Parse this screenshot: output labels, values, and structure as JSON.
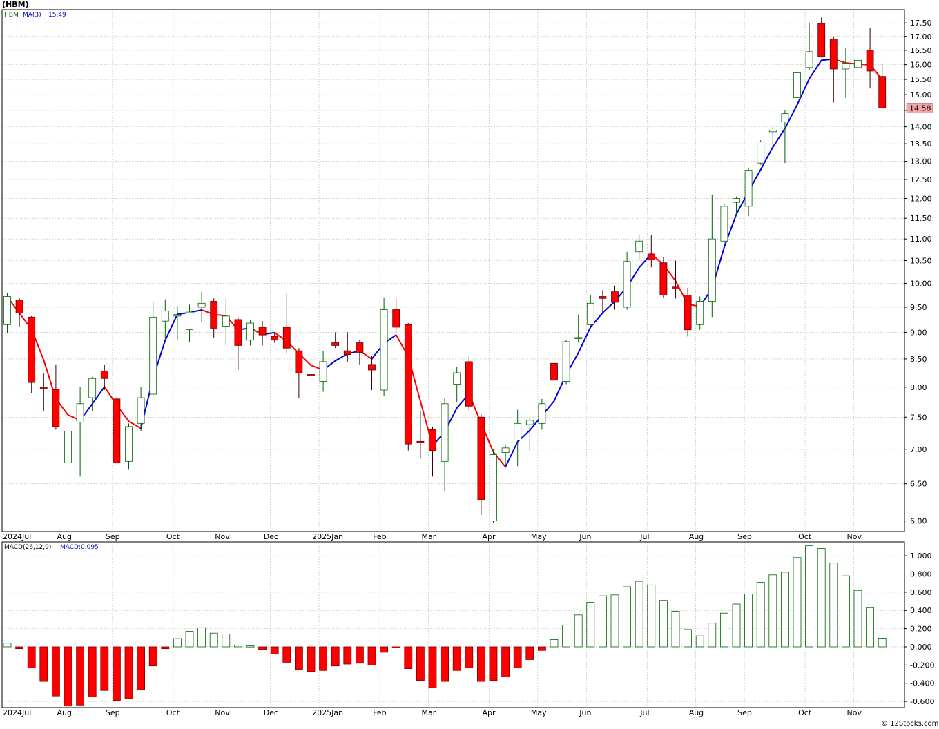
{
  "header": {
    "title": "(HBM)",
    "ticker": "HBM",
    "ma_label": "MA(3)",
    "ma_value": "15.49",
    "last_price": "14.58"
  },
  "macd_legend": {
    "label": "MACD(26,12,9)",
    "value_label": "MACD:0.095"
  },
  "copyright": "© 12Stocks.com",
  "colors": {
    "up": "#006400",
    "down": "#ff0000",
    "ma_up": "#0000dd",
    "ma_down": "#ff0000",
    "grid": "#b8b8b8",
    "price_tag": "#f4a6a6"
  },
  "chart_data": [
    {
      "type": "candlestick",
      "title": "(HBM)",
      "y_scale": "log",
      "ylim": [
        5.9,
        17.9
      ],
      "y_ticks": [
        6.0,
        6.5,
        7.0,
        7.5,
        8.0,
        8.5,
        9.0,
        9.5,
        10.0,
        10.5,
        11.0,
        11.5,
        12.0,
        12.5,
        13.0,
        13.5,
        14.0,
        14.5,
        15.0,
        15.5,
        16.0,
        16.5,
        17.0,
        17.5
      ],
      "x_tick_labels": [
        {
          "label": "2024Jul",
          "index": 0
        },
        {
          "label": "Aug",
          "index": 5
        },
        {
          "label": "Sep",
          "index": 9
        },
        {
          "label": "Oct",
          "index": 14
        },
        {
          "label": "Nov",
          "index": 18
        },
        {
          "label": "Dec",
          "index": 22
        },
        {
          "label": "2025Jan",
          "index": 26
        },
        {
          "label": "Feb",
          "index": 31
        },
        {
          "label": "Mar",
          "index": 35
        },
        {
          "label": "Apr",
          "index": 40
        },
        {
          "label": "May",
          "index": 44
        },
        {
          "label": "Jun",
          "index": 48
        },
        {
          "label": "Jul",
          "index": 53
        },
        {
          "label": "Aug",
          "index": 57
        },
        {
          "label": "Sep",
          "index": 61
        },
        {
          "label": "Oct",
          "index": 66
        },
        {
          "label": "Nov",
          "index": 70
        }
      ],
      "candles": [
        {
          "o": 9.15,
          "h": 9.8,
          "l": 8.98,
          "c": 9.72
        },
        {
          "o": 9.65,
          "h": 9.7,
          "l": 9.1,
          "c": 9.38
        },
        {
          "o": 9.3,
          "h": 9.32,
          "l": 7.9,
          "c": 8.08
        },
        {
          "o": 8.0,
          "h": 8.25,
          "l": 7.6,
          "c": 7.98
        },
        {
          "o": 7.96,
          "h": 8.4,
          "l": 7.3,
          "c": 7.35
        },
        {
          "o": 6.8,
          "h": 7.35,
          "l": 6.62,
          "c": 7.28
        },
        {
          "o": 7.42,
          "h": 8.0,
          "l": 6.6,
          "c": 7.72
        },
        {
          "o": 7.82,
          "h": 8.18,
          "l": 7.6,
          "c": 8.15
        },
        {
          "o": 8.28,
          "h": 8.4,
          "l": 7.95,
          "c": 8.15
        },
        {
          "o": 7.8,
          "h": 7.82,
          "l": 6.8,
          "c": 6.8
        },
        {
          "o": 6.82,
          "h": 7.4,
          "l": 6.7,
          "c": 7.35
        },
        {
          "o": 7.4,
          "h": 8.0,
          "l": 7.28,
          "c": 7.82
        },
        {
          "o": 7.88,
          "h": 9.62,
          "l": 7.85,
          "c": 9.3
        },
        {
          "o": 9.22,
          "h": 9.66,
          "l": 8.85,
          "c": 9.42
        },
        {
          "o": 9.32,
          "h": 9.52,
          "l": 8.85,
          "c": 9.35
        },
        {
          "o": 9.05,
          "h": 9.55,
          "l": 8.82,
          "c": 9.4
        },
        {
          "o": 9.5,
          "h": 9.82,
          "l": 9.2,
          "c": 9.58
        },
        {
          "o": 9.62,
          "h": 9.68,
          "l": 8.9,
          "c": 9.08
        },
        {
          "o": 9.12,
          "h": 9.68,
          "l": 8.75,
          "c": 9.32
        },
        {
          "o": 9.25,
          "h": 9.3,
          "l": 8.3,
          "c": 8.75
        },
        {
          "o": 8.85,
          "h": 9.25,
          "l": 8.75,
          "c": 9.18
        },
        {
          "o": 9.1,
          "h": 9.22,
          "l": 8.75,
          "c": 8.95
        },
        {
          "o": 8.92,
          "h": 9.0,
          "l": 8.8,
          "c": 8.85
        },
        {
          "o": 9.1,
          "h": 9.78,
          "l": 8.6,
          "c": 8.7
        },
        {
          "o": 8.65,
          "h": 8.7,
          "l": 7.82,
          "c": 8.25
        },
        {
          "o": 8.22,
          "h": 8.5,
          "l": 8.15,
          "c": 8.2
        },
        {
          "o": 8.1,
          "h": 8.65,
          "l": 7.92,
          "c": 8.45
        },
        {
          "o": 8.8,
          "h": 9.0,
          "l": 8.7,
          "c": 8.75
        },
        {
          "o": 8.65,
          "h": 9.0,
          "l": 8.45,
          "c": 8.58
        },
        {
          "o": 8.8,
          "h": 8.85,
          "l": 8.4,
          "c": 8.62
        },
        {
          "o": 8.4,
          "h": 8.55,
          "l": 7.95,
          "c": 8.3
        },
        {
          "o": 7.95,
          "h": 9.7,
          "l": 7.85,
          "c": 9.45
        },
        {
          "o": 9.45,
          "h": 9.7,
          "l": 9.0,
          "c": 9.1
        },
        {
          "o": 9.15,
          "h": 9.18,
          "l": 6.98,
          "c": 7.08
        },
        {
          "o": 7.12,
          "h": 7.6,
          "l": 6.86,
          "c": 7.1
        },
        {
          "o": 7.3,
          "h": 7.35,
          "l": 6.6,
          "c": 6.98
        },
        {
          "o": 6.82,
          "h": 7.82,
          "l": 6.4,
          "c": 7.72
        },
        {
          "o": 8.05,
          "h": 8.35,
          "l": 7.75,
          "c": 8.25
        },
        {
          "o": 8.45,
          "h": 8.55,
          "l": 7.6,
          "c": 7.68
        },
        {
          "o": 7.5,
          "h": 7.55,
          "l": 6.08,
          "c": 6.28
        },
        {
          "o": 6.0,
          "h": 7.0,
          "l": 5.98,
          "c": 6.92
        },
        {
          "o": 6.95,
          "h": 7.06,
          "l": 6.75,
          "c": 7.02
        },
        {
          "o": 7.14,
          "h": 7.62,
          "l": 6.75,
          "c": 7.4
        },
        {
          "o": 7.38,
          "h": 7.5,
          "l": 6.98,
          "c": 7.45
        },
        {
          "o": 7.4,
          "h": 7.8,
          "l": 7.3,
          "c": 7.72
        },
        {
          "o": 8.42,
          "h": 8.8,
          "l": 8.05,
          "c": 8.12
        },
        {
          "o": 8.1,
          "h": 8.85,
          "l": 8.05,
          "c": 8.82
        },
        {
          "o": 8.88,
          "h": 9.35,
          "l": 8.8,
          "c": 8.9
        },
        {
          "o": 9.15,
          "h": 9.75,
          "l": 9.1,
          "c": 9.58
        },
        {
          "o": 9.72,
          "h": 9.85,
          "l": 9.4,
          "c": 9.68
        },
        {
          "o": 9.82,
          "h": 9.95,
          "l": 9.45,
          "c": 9.6
        },
        {
          "o": 9.5,
          "h": 10.7,
          "l": 9.45,
          "c": 10.48
        },
        {
          "o": 10.7,
          "h": 11.1,
          "l": 10.52,
          "c": 10.95
        },
        {
          "o": 10.65,
          "h": 11.1,
          "l": 10.35,
          "c": 10.52
        },
        {
          "o": 10.45,
          "h": 10.58,
          "l": 9.7,
          "c": 9.75
        },
        {
          "o": 9.92,
          "h": 10.5,
          "l": 9.68,
          "c": 9.88
        },
        {
          "o": 9.75,
          "h": 9.9,
          "l": 8.92,
          "c": 9.05
        },
        {
          "o": 9.15,
          "h": 9.72,
          "l": 9.05,
          "c": 9.62
        },
        {
          "o": 9.62,
          "h": 12.1,
          "l": 9.3,
          "c": 11.0
        },
        {
          "o": 10.95,
          "h": 11.85,
          "l": 10.85,
          "c": 11.8
        },
        {
          "o": 11.9,
          "h": 12.05,
          "l": 11.6,
          "c": 12.0
        },
        {
          "o": 11.8,
          "h": 12.8,
          "l": 11.55,
          "c": 12.75
        },
        {
          "o": 12.95,
          "h": 13.6,
          "l": 12.9,
          "c": 13.55
        },
        {
          "o": 13.85,
          "h": 14.0,
          "l": 13.5,
          "c": 13.9
        },
        {
          "o": 14.15,
          "h": 14.5,
          "l": 12.95,
          "c": 14.4
        },
        {
          "o": 14.9,
          "h": 15.8,
          "l": 14.85,
          "c": 15.72
        },
        {
          "o": 15.9,
          "h": 17.5,
          "l": 15.8,
          "c": 16.45
        },
        {
          "o": 17.48,
          "h": 17.7,
          "l": 16.25,
          "c": 16.28
        },
        {
          "o": 16.9,
          "h": 17.0,
          "l": 14.75,
          "c": 15.85
        },
        {
          "o": 15.85,
          "h": 16.6,
          "l": 14.9,
          "c": 16.05
        },
        {
          "o": 15.9,
          "h": 16.2,
          "l": 14.8,
          "c": 16.15
        },
        {
          "o": 16.5,
          "h": 17.3,
          "l": 15.2,
          "c": 15.78
        },
        {
          "o": 15.6,
          "h": 16.05,
          "l": 14.55,
          "c": 14.58
        }
      ]
    },
    {
      "type": "bar",
      "title": "MACD(26,12,9)",
      "ylim": [
        -0.66,
        1.13
      ],
      "y_ticks": [
        -0.6,
        -0.4,
        -0.2,
        0.0,
        0.2,
        0.4,
        0.6,
        0.8,
        1.0
      ],
      "x_tick_labels": [
        {
          "label": "2024Jul",
          "index": 0
        },
        {
          "label": "Aug",
          "index": 5
        },
        {
          "label": "Sep",
          "index": 9
        },
        {
          "label": "Oct",
          "index": 14
        },
        {
          "label": "Nov",
          "index": 18
        },
        {
          "label": "Dec",
          "index": 22
        },
        {
          "label": "2025Jan",
          "index": 26
        },
        {
          "label": "Feb",
          "index": 31
        },
        {
          "label": "Mar",
          "index": 35
        },
        {
          "label": "Apr",
          "index": 40
        },
        {
          "label": "May",
          "index": 44
        },
        {
          "label": "Jun",
          "index": 48
        },
        {
          "label": "Jul",
          "index": 53
        },
        {
          "label": "Aug",
          "index": 57
        },
        {
          "label": "Sep",
          "index": 61
        },
        {
          "label": "Oct",
          "index": 66
        },
        {
          "label": "Nov",
          "index": 70
        }
      ],
      "values": [
        0.04,
        -0.02,
        -0.23,
        -0.38,
        -0.54,
        -0.65,
        -0.64,
        -0.55,
        -0.48,
        -0.59,
        -0.57,
        -0.47,
        -0.21,
        -0.02,
        0.09,
        0.17,
        0.21,
        0.15,
        0.14,
        0.02,
        0.01,
        -0.03,
        -0.08,
        -0.17,
        -0.25,
        -0.27,
        -0.26,
        -0.21,
        -0.19,
        -0.18,
        -0.2,
        -0.06,
        -0.01,
        -0.24,
        -0.37,
        -0.45,
        -0.38,
        -0.26,
        -0.23,
        -0.38,
        -0.37,
        -0.33,
        -0.23,
        -0.14,
        -0.04,
        0.08,
        0.24,
        0.35,
        0.49,
        0.56,
        0.57,
        0.66,
        0.72,
        0.68,
        0.51,
        0.39,
        0.19,
        0.12,
        0.26,
        0.37,
        0.47,
        0.58,
        0.71,
        0.79,
        0.82,
        0.98,
        1.11,
        1.08,
        0.92,
        0.78,
        0.62,
        0.43,
        0.095
      ]
    }
  ]
}
